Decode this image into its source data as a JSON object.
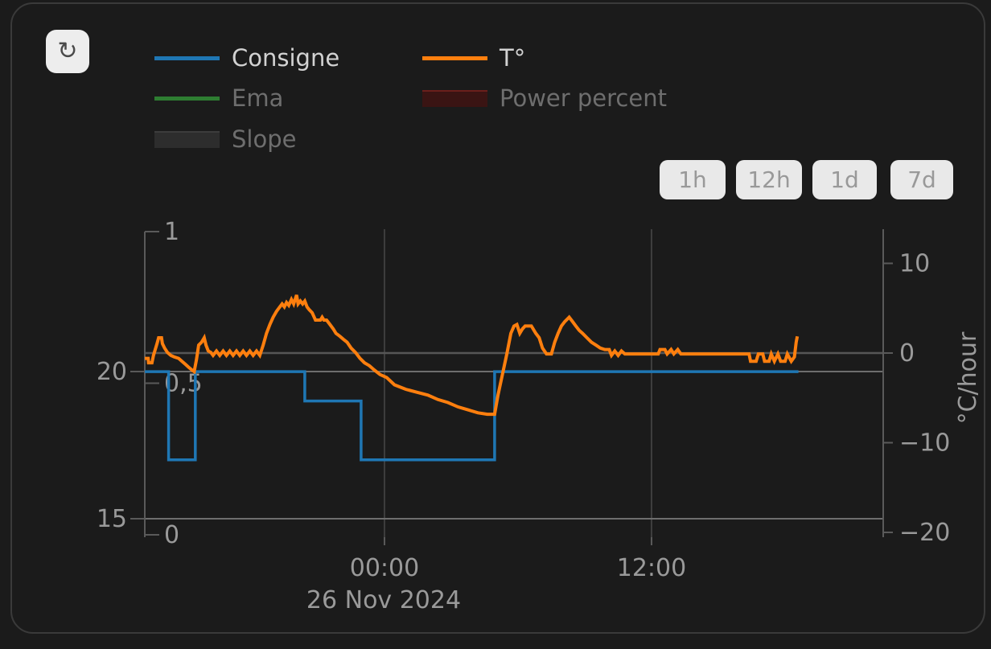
{
  "card": {
    "refresh_icon": "↻"
  },
  "legend": {
    "items": [
      {
        "label": "Consigne",
        "series_color": "#1f77b4",
        "swatch": "line",
        "active": true,
        "col": 0,
        "row": 0
      },
      {
        "label": "Ema",
        "series_color": "#2e7d32",
        "swatch": "line",
        "active": false,
        "col": 0,
        "row": 1
      },
      {
        "label": "Slope",
        "series_color": "#2d2d2d",
        "swatch": "box",
        "swatch_edge": "#3c3c3c",
        "active": false,
        "col": 0,
        "row": 2
      },
      {
        "label": "T°",
        "series_color": "#ff7f0e",
        "swatch": "line",
        "active": true,
        "col": 1,
        "row": 0
      },
      {
        "label": "Power percent",
        "series_color": "#3a1413",
        "swatch": "box",
        "swatch_edge": "#6b1f1c",
        "active": false,
        "col": 1,
        "row": 1
      }
    ]
  },
  "range_buttons": [
    {
      "label": "1h"
    },
    {
      "label": "12h"
    },
    {
      "label": "1d"
    },
    {
      "label": "7d"
    }
  ],
  "chart_data": {
    "type": "line",
    "x_axis": {
      "tick_values": [
        0,
        12
      ],
      "tick_labels": [
        "00:00",
        "12:00"
      ],
      "date_label": "26 Nov 2024"
    },
    "x_range_hours": [
      -10.77,
      22.41
    ],
    "y_temp_range": [
      14.37,
      24.84
    ],
    "y_rate_range": [
      -20.54,
      13.81
    ],
    "y_frac_range": [
      -0.008,
      1.008
    ],
    "y_axis_temp": {
      "tick_values": [
        20,
        15
      ],
      "tick_labels": [
        "20",
        "15"
      ]
    },
    "y_axis_fraction": {
      "tick_values": [
        1,
        0.5,
        0
      ],
      "tick_labels": [
        "1",
        "0,5",
        "0"
      ]
    },
    "y_axis_rate": {
      "label": "°C/hour",
      "tick_values": [
        10,
        0,
        -10,
        -20
      ],
      "tick_labels": [
        "10",
        "0",
        "−10",
        "−20"
      ]
    },
    "grid": true,
    "legend_position": "top-left",
    "series": [
      {
        "name": "Consigne",
        "color": "#1f77b4",
        "width": 3.5,
        "axis": "temp",
        "points": [
          [
            -10.77,
            20
          ],
          [
            -9.7,
            20
          ],
          [
            -9.7,
            17
          ],
          [
            -8.5,
            17
          ],
          [
            -8.5,
            20
          ],
          [
            -3.58,
            20
          ],
          [
            -3.58,
            19
          ],
          [
            -1.05,
            19
          ],
          [
            -1.05,
            17
          ],
          [
            4.95,
            17
          ],
          [
            4.95,
            20
          ],
          [
            18.6,
            20
          ]
        ]
      },
      {
        "name": "T°",
        "color": "#ff7f0e",
        "width": 4,
        "axis": "temp",
        "points": [
          [
            -10.77,
            20.45
          ],
          [
            -10.62,
            20.45
          ],
          [
            -10.6,
            20.3
          ],
          [
            -10.45,
            20.3
          ],
          [
            -10.38,
            20.55
          ],
          [
            -10.3,
            20.75
          ],
          [
            -10.22,
            20.95
          ],
          [
            -10.15,
            21.15
          ],
          [
            -10.02,
            21.15
          ],
          [
            -9.98,
            20.95
          ],
          [
            -9.88,
            20.8
          ],
          [
            -9.75,
            20.65
          ],
          [
            -9.6,
            20.55
          ],
          [
            -9.45,
            20.5
          ],
          [
            -9.25,
            20.45
          ],
          [
            -9.1,
            20.35
          ],
          [
            -8.95,
            20.25
          ],
          [
            -8.8,
            20.15
          ],
          [
            -8.65,
            20.05
          ],
          [
            -8.55,
            20.0
          ],
          [
            -8.45,
            20.4
          ],
          [
            -8.35,
            20.9
          ],
          [
            -8.22,
            21.0
          ],
          [
            -8.1,
            21.15
          ],
          [
            -8.02,
            20.9
          ],
          [
            -7.92,
            20.7
          ],
          [
            -7.8,
            20.65
          ],
          [
            -7.7,
            20.55
          ],
          [
            -7.55,
            20.7
          ],
          [
            -7.4,
            20.55
          ],
          [
            -7.25,
            20.7
          ],
          [
            -7.1,
            20.55
          ],
          [
            -6.95,
            20.7
          ],
          [
            -6.8,
            20.55
          ],
          [
            -6.65,
            20.7
          ],
          [
            -6.5,
            20.55
          ],
          [
            -6.35,
            20.7
          ],
          [
            -6.2,
            20.55
          ],
          [
            -6.05,
            20.7
          ],
          [
            -5.9,
            20.55
          ],
          [
            -5.75,
            20.7
          ],
          [
            -5.6,
            20.55
          ],
          [
            -5.45,
            20.9
          ],
          [
            -5.3,
            21.3
          ],
          [
            -5.15,
            21.6
          ],
          [
            -5.0,
            21.85
          ],
          [
            -4.85,
            22.05
          ],
          [
            -4.7,
            22.2
          ],
          [
            -4.6,
            22.3
          ],
          [
            -4.5,
            22.2
          ],
          [
            -4.4,
            22.35
          ],
          [
            -4.3,
            22.25
          ],
          [
            -4.18,
            22.45
          ],
          [
            -4.08,
            22.3
          ],
          [
            -3.95,
            22.6
          ],
          [
            -3.88,
            22.3
          ],
          [
            -3.78,
            22.4
          ],
          [
            -3.68,
            22.3
          ],
          [
            -3.58,
            22.4
          ],
          [
            -3.48,
            22.2
          ],
          [
            -3.38,
            22.1
          ],
          [
            -3.25,
            22.0
          ],
          [
            -3.1,
            21.75
          ],
          [
            -2.88,
            21.75
          ],
          [
            -2.8,
            21.85
          ],
          [
            -2.72,
            21.75
          ],
          [
            -2.6,
            21.75
          ],
          [
            -2.45,
            21.6
          ],
          [
            -2.3,
            21.45
          ],
          [
            -2.18,
            21.3
          ],
          [
            -2.0,
            21.2
          ],
          [
            -1.85,
            21.1
          ],
          [
            -1.68,
            21.0
          ],
          [
            -1.5,
            20.8
          ],
          [
            -1.3,
            20.65
          ],
          [
            -1.1,
            20.45
          ],
          [
            -0.9,
            20.3
          ],
          [
            -0.68,
            20.2
          ],
          [
            -0.45,
            20.05
          ],
          [
            -0.2,
            19.9
          ],
          [
            0.1,
            19.8
          ],
          [
            0.45,
            19.55
          ],
          [
            0.95,
            19.4
          ],
          [
            1.45,
            19.3
          ],
          [
            1.95,
            19.2
          ],
          [
            2.4,
            19.05
          ],
          [
            2.85,
            18.95
          ],
          [
            3.3,
            18.8
          ],
          [
            3.75,
            18.7
          ],
          [
            4.2,
            18.6
          ],
          [
            4.62,
            18.55
          ],
          [
            4.95,
            18.55
          ],
          [
            5.1,
            19.2
          ],
          [
            5.3,
            19.9
          ],
          [
            5.5,
            20.6
          ],
          [
            5.68,
            21.3
          ],
          [
            5.82,
            21.55
          ],
          [
            5.95,
            21.6
          ],
          [
            6.08,
            21.3
          ],
          [
            6.2,
            21.45
          ],
          [
            6.32,
            21.55
          ],
          [
            6.6,
            21.55
          ],
          [
            6.8,
            21.3
          ],
          [
            6.95,
            21.15
          ],
          [
            7.1,
            20.8
          ],
          [
            7.28,
            20.6
          ],
          [
            7.5,
            20.6
          ],
          [
            7.65,
            21.0
          ],
          [
            7.8,
            21.3
          ],
          [
            7.95,
            21.55
          ],
          [
            8.1,
            21.7
          ],
          [
            8.3,
            21.85
          ],
          [
            8.45,
            21.7
          ],
          [
            8.6,
            21.55
          ],
          [
            8.75,
            21.4
          ],
          [
            8.9,
            21.3
          ],
          [
            9.1,
            21.15
          ],
          [
            9.3,
            21.0
          ],
          [
            9.5,
            20.9
          ],
          [
            9.7,
            20.8
          ],
          [
            9.9,
            20.75
          ],
          [
            10.1,
            20.75
          ],
          [
            10.2,
            20.55
          ],
          [
            10.35,
            20.7
          ],
          [
            10.5,
            20.55
          ],
          [
            10.65,
            20.7
          ],
          [
            10.8,
            20.6
          ],
          [
            11.2,
            20.6
          ],
          [
            12.0,
            20.6
          ],
          [
            12.3,
            20.6
          ],
          [
            12.38,
            20.75
          ],
          [
            12.6,
            20.75
          ],
          [
            12.7,
            20.6
          ],
          [
            12.88,
            20.75
          ],
          [
            13.0,
            20.6
          ],
          [
            13.18,
            20.75
          ],
          [
            13.32,
            20.6
          ],
          [
            14.2,
            20.6
          ],
          [
            15.5,
            20.6
          ],
          [
            16.38,
            20.6
          ],
          [
            16.45,
            20.35
          ],
          [
            16.7,
            20.35
          ],
          [
            16.8,
            20.6
          ],
          [
            17.0,
            20.6
          ],
          [
            17.08,
            20.35
          ],
          [
            17.28,
            20.35
          ],
          [
            17.38,
            20.6
          ],
          [
            17.52,
            20.35
          ],
          [
            17.68,
            20.6
          ],
          [
            17.8,
            20.35
          ],
          [
            18.0,
            20.35
          ],
          [
            18.1,
            20.6
          ],
          [
            18.28,
            20.35
          ],
          [
            18.42,
            20.5
          ],
          [
            18.5,
            21.0
          ],
          [
            18.55,
            21.2
          ]
        ]
      }
    ]
  }
}
